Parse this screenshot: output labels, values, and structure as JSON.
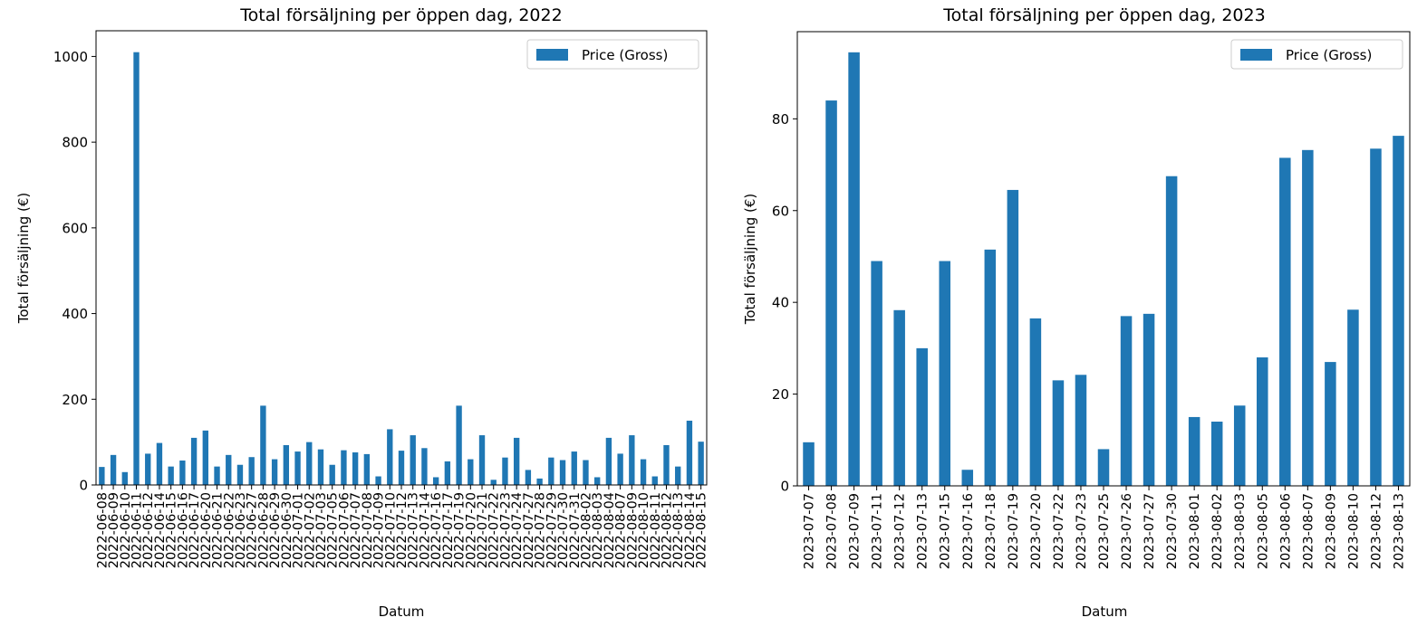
{
  "chart_data": [
    {
      "type": "bar",
      "title": "Total försäljning per öppen dag, 2022",
      "xlabel": "Datum",
      "ylabel": "Total försäljning (€)",
      "ylim": [
        0,
        1060
      ],
      "yticks": [
        0,
        200,
        400,
        600,
        800,
        1000
      ],
      "legend": "top-right",
      "grid": false,
      "color": "#1f77b4",
      "series": [
        {
          "name": "Price (Gross)",
          "values": [
            42,
            70,
            30,
            1010,
            73,
            98,
            43,
            57,
            110,
            127,
            43,
            70,
            47,
            65,
            185,
            60,
            93,
            78,
            100,
            83,
            47,
            81,
            76,
            72,
            20,
            130,
            80,
            116,
            86,
            18,
            55,
            185,
            60,
            116,
            12,
            64,
            110,
            35,
            15,
            64,
            58,
            78,
            58,
            18,
            110,
            73,
            116,
            60,
            20,
            93,
            43,
            150,
            101
          ]
        }
      ],
      "categories": [
        "2022-06-08",
        "2022-06-09",
        "2022-06-10",
        "2022-06-11",
        "2022-06-12",
        "2022-06-14",
        "2022-06-15",
        "2022-06-16",
        "2022-06-17",
        "2022-06-20",
        "2022-06-21",
        "2022-06-22",
        "2022-06-23",
        "2022-06-27",
        "2022-06-28",
        "2022-06-29",
        "2022-06-30",
        "2022-07-01",
        "2022-07-02",
        "2022-07-03",
        "2022-07-05",
        "2022-07-06",
        "2022-07-07",
        "2022-07-08",
        "2022-07-09",
        "2022-07-10",
        "2022-07-12",
        "2022-07-13",
        "2022-07-14",
        "2022-07-16",
        "2022-07-17",
        "2022-07-19",
        "2022-07-20",
        "2022-07-21",
        "2022-07-22",
        "2022-07-23",
        "2022-07-24",
        "2022-07-27",
        "2022-07-28",
        "2022-07-29",
        "2022-07-30",
        "2022-07-31",
        "2022-08-02",
        "2022-08-03",
        "2022-08-04",
        "2022-08-07",
        "2022-08-09",
        "2022-08-10",
        "2022-08-11",
        "2022-08-12",
        "2022-08-13",
        "2022-08-14",
        "2022-08-15"
      ]
    },
    {
      "type": "bar",
      "title": "Total försäljning per öppen dag, 2023",
      "xlabel": "Datum",
      "ylabel": "Total försäljning (€)",
      "ylim": [
        0,
        99
      ],
      "yticks": [
        0,
        20,
        40,
        60,
        80
      ],
      "legend": "top-right",
      "grid": false,
      "color": "#1f77b4",
      "series": [
        {
          "name": "Price (Gross)",
          "values": [
            9.5,
            84,
            94.5,
            49,
            38.3,
            30,
            49,
            3.5,
            51.5,
            64.5,
            36.5,
            23,
            24.2,
            8,
            37,
            37.5,
            67.5,
            15,
            14,
            17.5,
            28,
            71.5,
            73.2,
            27,
            38.4,
            73.5,
            76.3
          ]
        }
      ],
      "categories": [
        "2023-07-07",
        "2023-07-08",
        "2023-07-09",
        "2023-07-11",
        "2023-07-12",
        "2023-07-13",
        "2023-07-15",
        "2023-07-16",
        "2023-07-18",
        "2023-07-19",
        "2023-07-20",
        "2023-07-22",
        "2023-07-23",
        "2023-07-25",
        "2023-07-26",
        "2023-07-27",
        "2023-07-30",
        "2023-08-01",
        "2023-08-02",
        "2023-08-03",
        "2023-08-05",
        "2023-08-06",
        "2023-08-07",
        "2023-08-09",
        "2023-08-10",
        "2023-08-12",
        "2023-08-13"
      ]
    }
  ]
}
